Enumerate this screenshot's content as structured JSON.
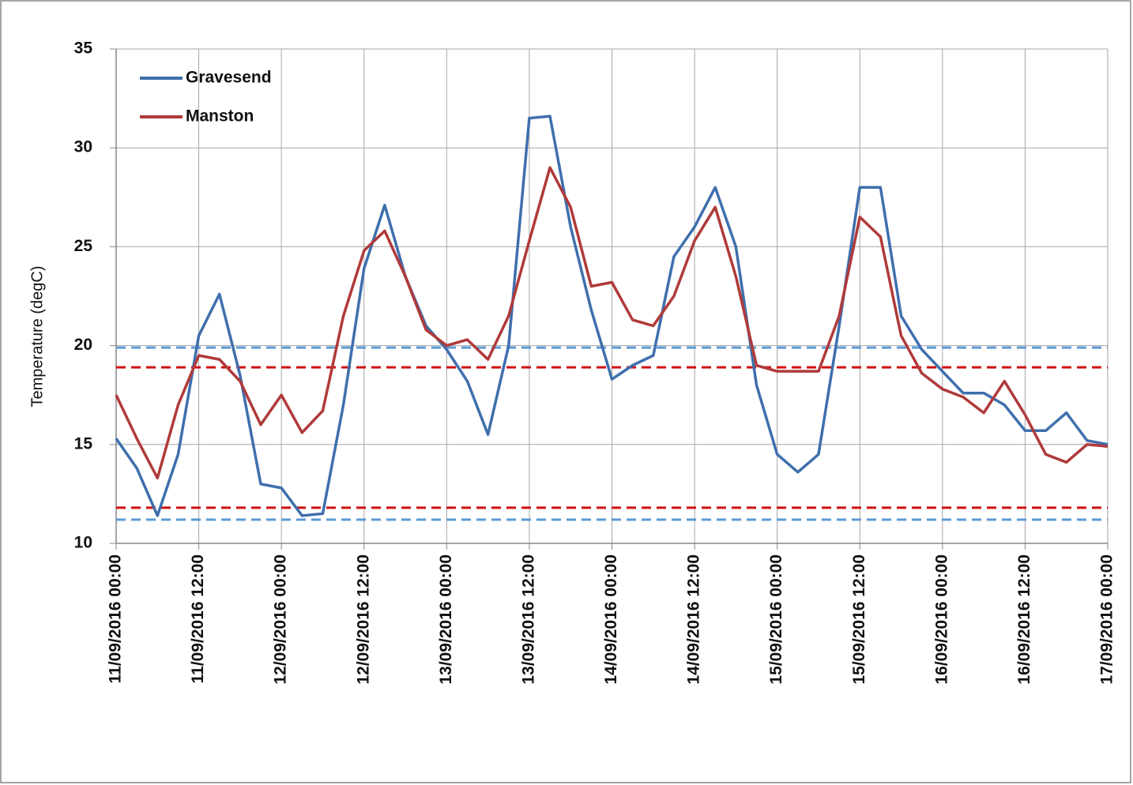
{
  "chart_data": {
    "type": "line",
    "y_label": "Temperature (degC)",
    "x": [
      "11/09/2016 00:00",
      "11/09/2016 03:00",
      "11/09/2016 06:00",
      "11/09/2016 09:00",
      "11/09/2016 12:00",
      "11/09/2016 15:00",
      "11/09/2016 18:00",
      "11/09/2016 21:00",
      "12/09/2016 00:00",
      "12/09/2016 03:00",
      "12/09/2016 06:00",
      "12/09/2016 09:00",
      "12/09/2016 12:00",
      "12/09/2016 15:00",
      "12/09/2016 18:00",
      "12/09/2016 21:00",
      "13/09/2016 00:00",
      "13/09/2016 03:00",
      "13/09/2016 06:00",
      "13/09/2016 09:00",
      "13/09/2016 12:00",
      "13/09/2016 15:00",
      "13/09/2016 18:00",
      "13/09/2016 21:00",
      "14/09/2016 00:00",
      "14/09/2016 03:00",
      "14/09/2016 06:00",
      "14/09/2016 09:00",
      "14/09/2016 12:00",
      "14/09/2016 15:00",
      "14/09/2016 18:00",
      "14/09/2016 21:00",
      "15/09/2016 00:00",
      "15/09/2016 03:00",
      "15/09/2016 06:00",
      "15/09/2016 09:00",
      "15/09/2016 12:00",
      "15/09/2016 15:00",
      "15/09/2016 18:00",
      "15/09/2016 21:00",
      "16/09/2016 00:00",
      "16/09/2016 03:00",
      "16/09/2016 06:00",
      "16/09/2016 09:00",
      "16/09/2016 12:00",
      "16/09/2016 15:00",
      "16/09/2016 18:00",
      "16/09/2016 21:00",
      "17/09/2016 00:00"
    ],
    "series": [
      {
        "name": "Gravesend",
        "color": "#3f6fad",
        "values": [
          15.3,
          13.8,
          11.4,
          14.5,
          20.5,
          22.6,
          18.5,
          13,
          12.8,
          11.4,
          11.5,
          17,
          23.9,
          27.1,
          23.5,
          21,
          19.8,
          18.2,
          15.5,
          20,
          31.5,
          31.6,
          26,
          21.8,
          18.3,
          19,
          19.5,
          24.5,
          26,
          28,
          25,
          18,
          14.5,
          13.6,
          14.5,
          21,
          28,
          28,
          21.5,
          19.8,
          18.7,
          17.6,
          17.6,
          17,
          15.7,
          15.7,
          16.6,
          15.2,
          15
        ]
      },
      {
        "name": "Manston",
        "color": "#b03a3a",
        "values": [
          17.5,
          15.3,
          13.3,
          17,
          19.5,
          19.3,
          18.2,
          16,
          17.5,
          15.6,
          16.7,
          21.5,
          24.8,
          25.8,
          23.5,
          20.8,
          20,
          20.3,
          19.3,
          21.5,
          25.3,
          29,
          27,
          23,
          23.2,
          21.3,
          21,
          22.5,
          25.3,
          27,
          23.5,
          19,
          18.7,
          18.7,
          18.7,
          21.5,
          26.5,
          25.5,
          20.5,
          18.6,
          17.8,
          17.4,
          16.6,
          18.2,
          16.5,
          14.5,
          14.1,
          15,
          14.9
        ]
      }
    ],
    "reference_lines": [
      {
        "value": 19.9,
        "color": "#5b9bd5"
      },
      {
        "value": 18.9,
        "color": "#d01010"
      },
      {
        "value": 11.8,
        "color": "#d01010"
      },
      {
        "value": 11.2,
        "color": "#5b9bd5"
      }
    ],
    "xlim": [
      "11/09/2016 00:00",
      "17/09/2016 00:00"
    ],
    "xticks": [
      "11/09/2016 00:00",
      "11/09/2016 12:00",
      "12/09/2016 00:00",
      "12/09/2016 12:00",
      "13/09/2016 00:00",
      "13/09/2016 12:00",
      "14/09/2016 00:00",
      "14/09/2016 12:00",
      "15/09/2016 00:00",
      "15/09/2016 12:00",
      "16/09/2016 00:00",
      "16/09/2016 12:00",
      "17/09/2016 00:00"
    ],
    "ylim": [
      10,
      35
    ],
    "yticks": [
      10,
      15,
      20,
      25,
      30,
      35
    ],
    "grid": true,
    "legend": "top-left"
  }
}
